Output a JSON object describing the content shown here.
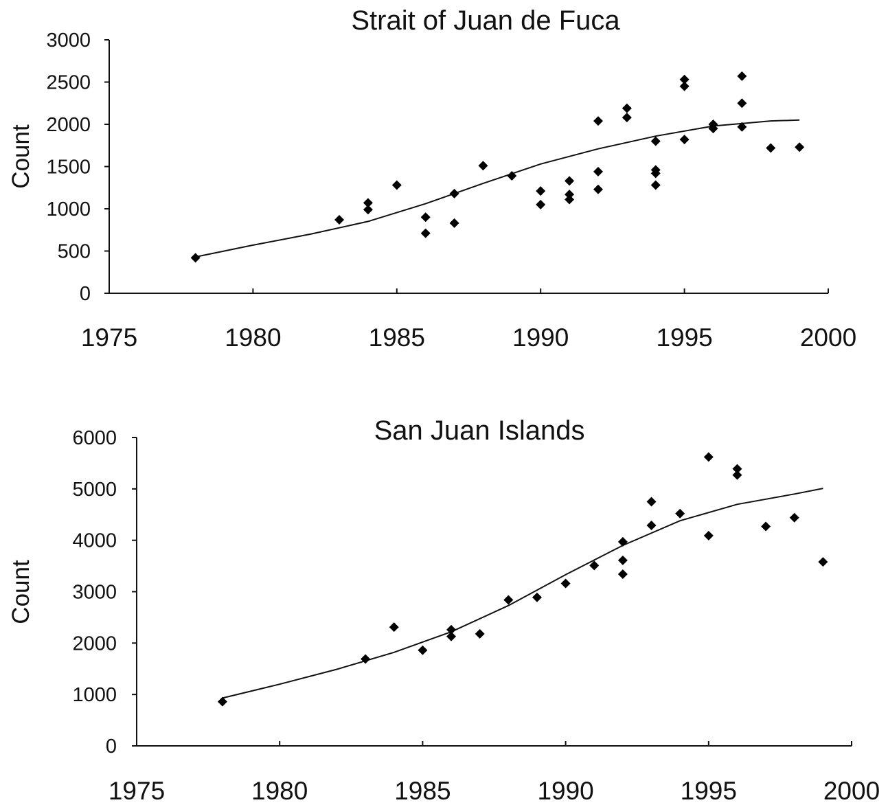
{
  "chart_data": [
    {
      "type": "scatter",
      "title": "Strait of Juan de Fuca",
      "xlabel": "",
      "ylabel": "Count",
      "xlim": [
        1975,
        2000
      ],
      "ylim": [
        0,
        3000
      ],
      "xticks": [
        "1975",
        "1980",
        "1985",
        "1990",
        "1995",
        "2000"
      ],
      "yticks": [
        "0",
        "500",
        "1000",
        "1500",
        "2000",
        "2500",
        "3000"
      ],
      "grid": false,
      "points": [
        [
          1978,
          420
        ],
        [
          1983,
          870
        ],
        [
          1984,
          1070
        ],
        [
          1984,
          990
        ],
        [
          1985,
          1280
        ],
        [
          1986,
          900
        ],
        [
          1986,
          710
        ],
        [
          1987,
          1180
        ],
        [
          1987,
          830
        ],
        [
          1988,
          1510
        ],
        [
          1989,
          1390
        ],
        [
          1990,
          1210
        ],
        [
          1990,
          1050
        ],
        [
          1991,
          1330
        ],
        [
          1991,
          1170
        ],
        [
          1991,
          1110
        ],
        [
          1992,
          2040
        ],
        [
          1992,
          1440
        ],
        [
          1992,
          1230
        ],
        [
          1993,
          2190
        ],
        [
          1993,
          2080
        ],
        [
          1994,
          1800
        ],
        [
          1994,
          1460
        ],
        [
          1994,
          1420
        ],
        [
          1994,
          1280
        ],
        [
          1995,
          2530
        ],
        [
          1995,
          2450
        ],
        [
          1995,
          1820
        ],
        [
          1996,
          2000
        ],
        [
          1996,
          1950
        ],
        [
          1997,
          2570
        ],
        [
          1997,
          2250
        ],
        [
          1997,
          1970
        ],
        [
          1998,
          1720
        ],
        [
          1999,
          1730
        ]
      ],
      "fit": [
        [
          1978,
          430
        ],
        [
          1980,
          570
        ],
        [
          1982,
          700
        ],
        [
          1984,
          850
        ],
        [
          1986,
          1060
        ],
        [
          1988,
          1300
        ],
        [
          1990,
          1530
        ],
        [
          1992,
          1710
        ],
        [
          1994,
          1860
        ],
        [
          1996,
          1980
        ],
        [
          1998,
          2040
        ],
        [
          1999,
          2050
        ]
      ]
    },
    {
      "type": "scatter",
      "title": "San Juan Islands",
      "xlabel": "",
      "ylabel": "Count",
      "xlim": [
        1975,
        2000
      ],
      "ylim": [
        0,
        6000
      ],
      "xticks": [
        "1975",
        "1980",
        "1985",
        "1990",
        "1995",
        "2000"
      ],
      "yticks": [
        "0",
        "1000",
        "2000",
        "3000",
        "4000",
        "5000",
        "6000"
      ],
      "grid": false,
      "points": [
        [
          1978,
          860
        ],
        [
          1983,
          1690
        ],
        [
          1984,
          2310
        ],
        [
          1985,
          1860
        ],
        [
          1986,
          2260
        ],
        [
          1986,
          2130
        ],
        [
          1987,
          2180
        ],
        [
          1988,
          2840
        ],
        [
          1989,
          2890
        ],
        [
          1990,
          3160
        ],
        [
          1991,
          3510
        ],
        [
          1992,
          3970
        ],
        [
          1992,
          3610
        ],
        [
          1992,
          3340
        ],
        [
          1993,
          4750
        ],
        [
          1993,
          4290
        ],
        [
          1994,
          4520
        ],
        [
          1995,
          5620
        ],
        [
          1995,
          4090
        ],
        [
          1996,
          5390
        ],
        [
          1996,
          5270
        ],
        [
          1997,
          4270
        ],
        [
          1998,
          4440
        ],
        [
          1999,
          3580
        ]
      ],
      "fit": [
        [
          1978,
          930
        ],
        [
          1980,
          1200
        ],
        [
          1982,
          1490
        ],
        [
          1984,
          1820
        ],
        [
          1986,
          2220
        ],
        [
          1988,
          2730
        ],
        [
          1990,
          3330
        ],
        [
          1992,
          3900
        ],
        [
          1994,
          4380
        ],
        [
          1996,
          4700
        ],
        [
          1998,
          4900
        ],
        [
          1999,
          5010
        ]
      ]
    }
  ]
}
